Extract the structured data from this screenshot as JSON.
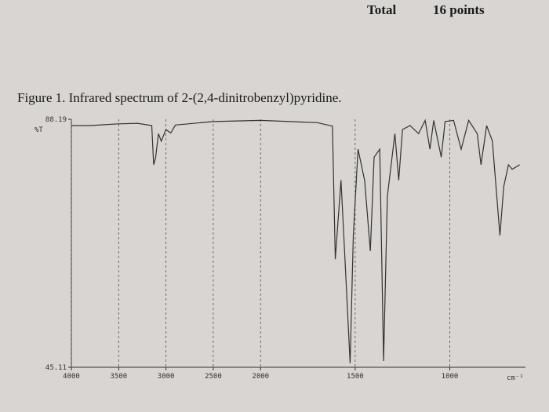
{
  "header": {
    "total": "Total",
    "points": "16 points"
  },
  "chart_data": {
    "type": "line",
    "title": "Figure 1. Infrared spectrum of 2-(2,4-dinitrobenzyl)pyridine.",
    "y_label": "%T",
    "x_label": "cm⁻¹",
    "x": [
      4000,
      3800,
      3500,
      3300,
      3150,
      3130,
      3110,
      3080,
      3050,
      3000,
      2950,
      2900,
      2500,
      2000,
      1700,
      1620,
      1605,
      1575,
      1555,
      1527,
      1510,
      1485,
      1450,
      1420,
      1400,
      1370,
      1350,
      1330,
      1290,
      1270,
      1250,
      1210,
      1165,
      1130,
      1105,
      1085,
      1045,
      1025,
      980,
      940,
      900,
      855,
      835,
      805,
      775,
      735,
      715,
      690,
      670,
      630
    ],
    "series": [
      {
        "color": "#333333",
        "values": [
          87.1,
          87.1,
          87.4,
          87.5,
          87.1,
          80.3,
          81.5,
          85.7,
          84.4,
          86.4,
          85.8,
          87.2,
          87.8,
          88.0,
          87.6,
          87.0,
          63.9,
          77.6,
          64.6,
          45.8,
          68.0,
          83.0,
          77.6,
          65.3,
          81.6,
          83.0,
          46.2,
          74.8,
          85.7,
          77.6,
          86.4,
          87.1,
          85.7,
          88.0,
          83.0,
          88.0,
          81.6,
          87.8,
          88.0,
          83.0,
          88.0,
          85.7,
          80.3,
          87.1,
          84.4,
          68.0,
          76.5,
          80.3,
          79.5,
          80.3
        ]
      }
    ],
    "xlim": [
      4000,
      600
    ],
    "x_break": 2000,
    "xticks": [
      4000,
      3500,
      3000,
      2500,
      2000,
      1500,
      1000
    ],
    "ylim": [
      45.11,
      88.19
    ],
    "yticks": [
      45.11,
      88.19
    ],
    "grid": true
  }
}
